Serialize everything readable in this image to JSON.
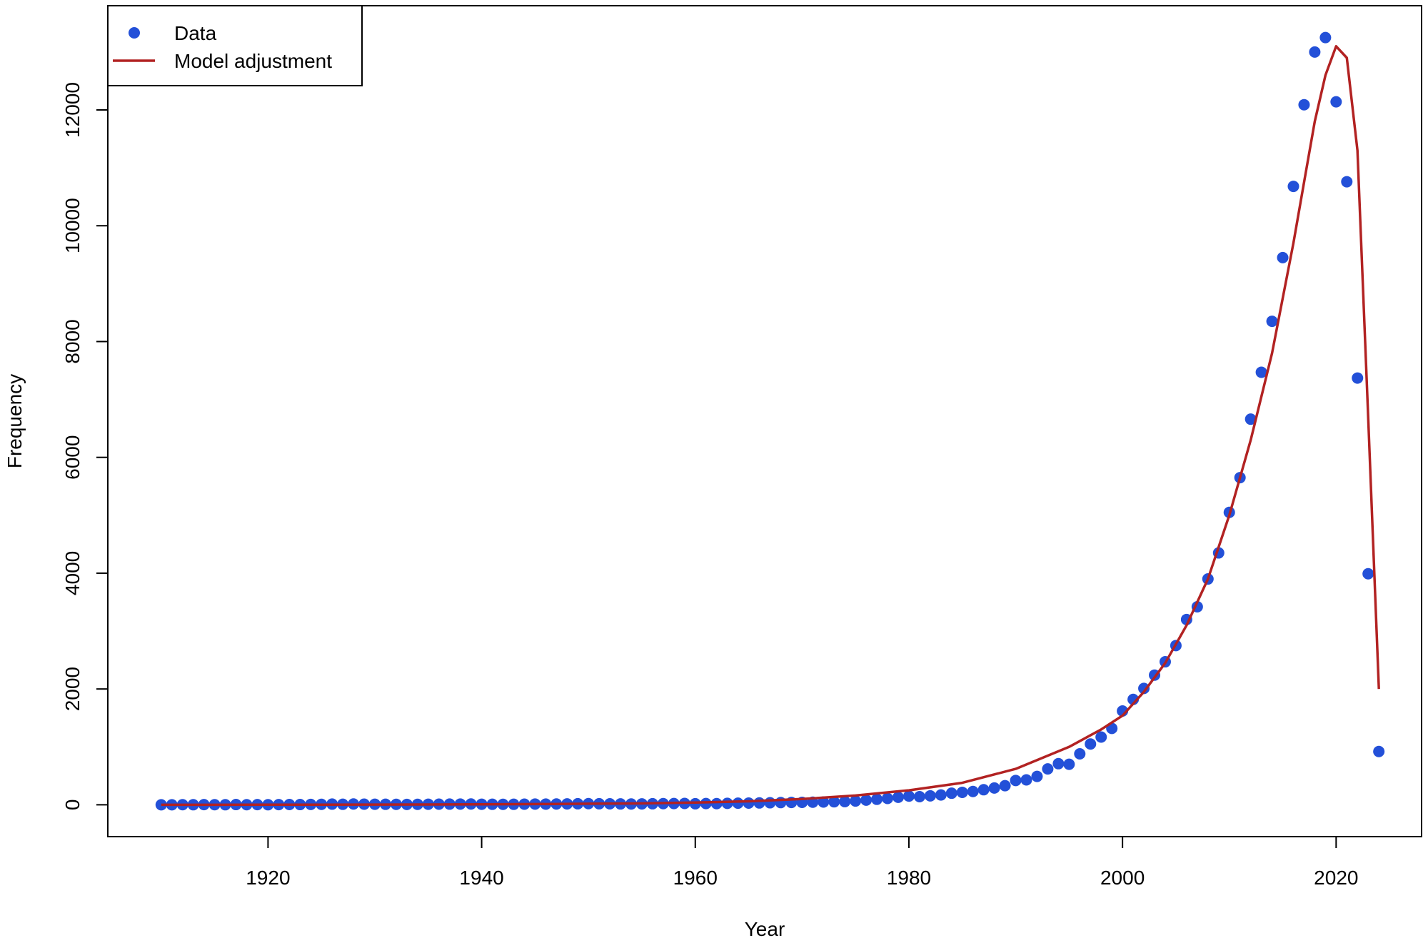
{
  "chart_data": {
    "type": "scatter",
    "title": "",
    "xlabel": "Year",
    "ylabel": "Frequency",
    "xlim": [
      1905,
      2028
    ],
    "ylim": [
      -550,
      13800
    ],
    "x_ticks": [
      "1920",
      "1940",
      "1960",
      "1980",
      "2000",
      "2020"
    ],
    "y_ticks": [
      "0",
      "2000",
      "4000",
      "6000",
      "8000",
      "10000",
      "12000"
    ],
    "grid": false,
    "legend_position": "top-left",
    "legend": [
      {
        "label": "Data",
        "kind": "point"
      },
      {
        "label": "Model adjustment",
        "kind": "line"
      }
    ],
    "series": [
      {
        "name": "Data",
        "kind": "points",
        "color": "#2350d8",
        "x": [
          1910,
          1911,
          1912,
          1913,
          1914,
          1915,
          1916,
          1917,
          1918,
          1919,
          1920,
          1921,
          1922,
          1923,
          1924,
          1925,
          1926,
          1927,
          1928,
          1929,
          1930,
          1931,
          1932,
          1933,
          1934,
          1935,
          1936,
          1937,
          1938,
          1939,
          1940,
          1941,
          1942,
          1943,
          1944,
          1945,
          1946,
          1947,
          1948,
          1949,
          1950,
          1951,
          1952,
          1953,
          1954,
          1955,
          1956,
          1957,
          1958,
          1959,
          1960,
          1961,
          1962,
          1963,
          1964,
          1965,
          1966,
          1967,
          1968,
          1969,
          1970,
          1971,
          1972,
          1973,
          1974,
          1975,
          1976,
          1977,
          1978,
          1979,
          1980,
          1981,
          1982,
          1983,
          1984,
          1985,
          1986,
          1987,
          1988,
          1989,
          1990,
          1991,
          1992,
          1993,
          1994,
          1995,
          1996,
          1997,
          1998,
          1999,
          2000,
          2001,
          2002,
          2003,
          2004,
          2005,
          2006,
          2007,
          2008,
          2009,
          2010,
          2011,
          2012,
          2013,
          2014,
          2015,
          2016,
          2017,
          2018,
          2019,
          2020,
          2021,
          2022,
          2023,
          2024
        ],
        "y": [
          0,
          0,
          2,
          1,
          3,
          2,
          1,
          4,
          2,
          3,
          1,
          3,
          5,
          4,
          6,
          8,
          12,
          9,
          14,
          11,
          10,
          9,
          8,
          7,
          8,
          10,
          11,
          12,
          13,
          14,
          10,
          9,
          8,
          9,
          11,
          13,
          12,
          14,
          16,
          18,
          20,
          18,
          17,
          15,
          14,
          16,
          18,
          20,
          22,
          24,
          18,
          22,
          20,
          25,
          28,
          30,
          32,
          35,
          38,
          40,
          42,
          45,
          48,
          52,
          55,
          65,
          80,
          95,
          110,
          130,
          150,
          140,
          155,
          170,
          200,
          215,
          230,
          260,
          290,
          330,
          420,
          430,
          490,
          620,
          710,
          700,
          880,
          1050,
          1170,
          1320,
          1620,
          1820,
          2010,
          2240,
          2470,
          2750,
          3200,
          3420,
          3900,
          4350,
          5050,
          5650,
          6660,
          7470,
          8350,
          9450,
          10680,
          12090,
          13000,
          13250,
          12140,
          10760,
          7370,
          3990,
          920
        ]
      },
      {
        "name": "Model adjustment",
        "kind": "line",
        "color": "#b22222",
        "x": [
          1910,
          1915,
          1920,
          1925,
          1930,
          1935,
          1940,
          1945,
          1950,
          1955,
          1960,
          1965,
          1970,
          1975,
          1980,
          1985,
          1990,
          1995,
          1998,
          2000,
          2002,
          2004,
          2006,
          2008,
          2010,
          2012,
          2014,
          2016,
          2017,
          2018,
          2019,
          2020,
          2021,
          2022,
          2023,
          2024
        ],
        "y": [
          0,
          0,
          1,
          2,
          3,
          5,
          8,
          12,
          18,
          25,
          38,
          60,
          100,
          160,
          250,
          380,
          620,
          1000,
          1300,
          1540,
          1950,
          2450,
          3100,
          3900,
          5000,
          6300,
          7800,
          9700,
          10750,
          11800,
          12600,
          13100,
          12900,
          11300,
          6700,
          2000
        ]
      }
    ]
  }
}
